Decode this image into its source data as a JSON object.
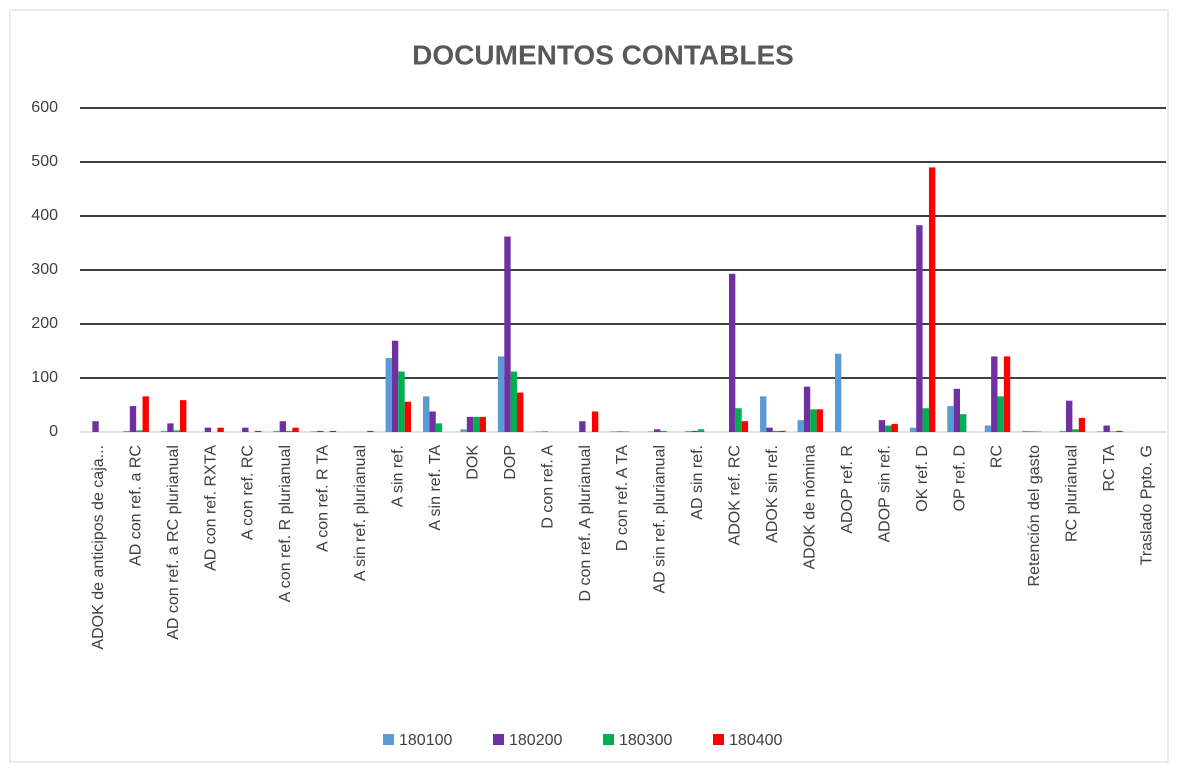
{
  "chart_data": {
    "type": "bar",
    "title": "DOCUMENTOS CONTABLES",
    "categories": [
      "ADOK de anticipos de caja...",
      "AD con ref. a RC",
      "AD con ref. a RC plurianual",
      "AD con ref. RXTA",
      "A con ref. RC",
      "A con ref. R plurianual",
      "A con ref. R TA",
      "A sin ref. plurianual",
      "A sin ref.",
      "A sin ref. TA",
      "DOK",
      "DOP",
      "D con ref. A",
      "D con ref. A plurianual",
      "D con ref. A TA",
      "AD sin ref. plurianual",
      "AD sin ref.",
      "ADOK ref. RC",
      "ADOK sin ref.",
      "ADOK de nómina",
      "ADOP ref. R",
      "ADOP sin ref.",
      "OK ref. D",
      "OP ref. D",
      "RC",
      "Retención del gasto",
      "RC plurianual",
      "RC TA",
      "Traslado Ppto. G"
    ],
    "series": [
      {
        "name": "180100",
        "color": "#5b9bd5",
        "values": [
          0,
          2,
          2,
          0,
          0,
          2,
          1,
          0,
          137,
          66,
          5,
          140,
          1,
          0,
          1,
          1,
          2,
          0,
          66,
          22,
          145,
          0,
          8,
          48,
          12,
          2,
          2,
          1,
          0
        ]
      },
      {
        "name": "180200",
        "color": "#7030a0",
        "values": [
          20,
          48,
          16,
          8,
          8,
          20,
          2,
          0,
          169,
          38,
          28,
          362,
          1,
          20,
          1,
          5,
          2,
          293,
          8,
          84,
          0,
          22,
          383,
          80,
          140,
          1,
          58,
          12,
          0
        ]
      },
      {
        "name": "180300",
        "color": "#00b050",
        "values": [
          0,
          3,
          3,
          0,
          0,
          2,
          0,
          0,
          112,
          16,
          28,
          112,
          0,
          0,
          1,
          2,
          5,
          44,
          2,
          42,
          0,
          12,
          44,
          33,
          66,
          1,
          5,
          1,
          0
        ]
      },
      {
        "name": "180400",
        "color": "#ff0000",
        "values": [
          0,
          66,
          59,
          8,
          2,
          8,
          2,
          2,
          56,
          0,
          28,
          73,
          0,
          38,
          0,
          0,
          0,
          20,
          2,
          42,
          0,
          15,
          490,
          0,
          140,
          0,
          26,
          2,
          0
        ]
      }
    ],
    "ylim": [
      0,
      600
    ],
    "yticks": [
      0,
      100,
      200,
      300,
      400,
      500,
      600
    ],
    "grid": true,
    "legend": "bottom"
  }
}
